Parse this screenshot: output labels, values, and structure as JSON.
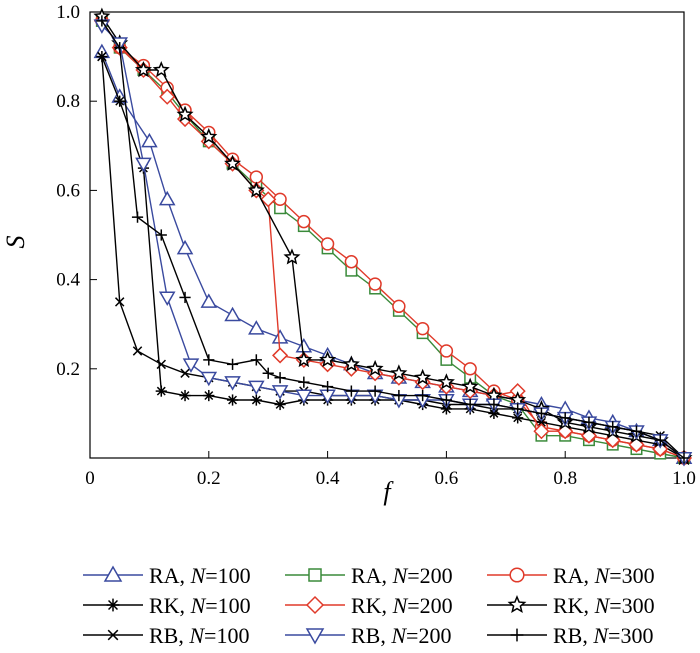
{
  "chart_data": {
    "type": "line",
    "xlabel": "f",
    "ylabel": "S",
    "xlim": [
      0,
      1.0
    ],
    "ylim": [
      0,
      1.0
    ],
    "x_ticks": [
      "0",
      "0.2",
      "0.4",
      "0.6",
      "0.8",
      "1.0"
    ],
    "y_ticks": [
      "0.2",
      "0.4",
      "0.6",
      "0.8",
      "1.0"
    ],
    "y_tick_values": [
      0.2,
      0.4,
      0.6,
      0.8,
      1.0
    ],
    "x_tick_values": [
      0,
      0.2,
      0.4,
      0.6,
      0.8,
      1.0
    ],
    "grid": false,
    "legend_position": "bottom",
    "series": [
      {
        "name": "RA, N=100",
        "method": "RA",
        "n": "100",
        "color": "#3a4a9f",
        "marker": "triangle-up",
        "x": [
          0.02,
          0.05,
          0.1,
          0.13,
          0.16,
          0.2,
          0.24,
          0.28,
          0.32,
          0.36,
          0.4,
          0.44,
          0.48,
          0.52,
          0.56,
          0.6,
          0.64,
          0.68,
          0.72,
          0.76,
          0.8,
          0.84,
          0.88,
          0.92,
          0.96,
          1.0
        ],
        "y": [
          0.91,
          0.81,
          0.71,
          0.58,
          0.47,
          0.35,
          0.32,
          0.29,
          0.27,
          0.25,
          0.23,
          0.21,
          0.19,
          0.18,
          0.17,
          0.16,
          0.15,
          0.14,
          0.13,
          0.12,
          0.11,
          0.09,
          0.08,
          0.06,
          0.04,
          0.0
        ]
      },
      {
        "name": "RA, N=200",
        "method": "RA",
        "n": "200",
        "color": "#3a8a3a",
        "marker": "square",
        "x": [
          0.02,
          0.05,
          0.09,
          0.13,
          0.16,
          0.2,
          0.24,
          0.28,
          0.32,
          0.36,
          0.4,
          0.44,
          0.48,
          0.52,
          0.56,
          0.6,
          0.64,
          0.68,
          0.72,
          0.76,
          0.8,
          0.84,
          0.88,
          0.92,
          0.96,
          1.0
        ],
        "y": [
          0.98,
          0.92,
          0.87,
          0.82,
          0.77,
          0.71,
          0.66,
          0.61,
          0.56,
          0.52,
          0.47,
          0.42,
          0.38,
          0.33,
          0.28,
          0.22,
          0.18,
          0.14,
          0.12,
          0.05,
          0.05,
          0.04,
          0.03,
          0.02,
          0.01,
          0.0
        ]
      },
      {
        "name": "RA, N=300",
        "method": "RA",
        "n": "300",
        "color": "#e03a2a",
        "marker": "circle",
        "x": [
          0.02,
          0.05,
          0.09,
          0.13,
          0.16,
          0.2,
          0.24,
          0.28,
          0.32,
          0.36,
          0.4,
          0.44,
          0.48,
          0.52,
          0.56,
          0.6,
          0.64,
          0.68,
          0.72,
          0.76,
          0.8,
          0.84,
          0.88,
          0.92,
          0.96,
          1.0
        ],
        "y": [
          0.98,
          0.92,
          0.88,
          0.83,
          0.78,
          0.73,
          0.67,
          0.63,
          0.58,
          0.53,
          0.48,
          0.44,
          0.39,
          0.34,
          0.29,
          0.24,
          0.2,
          0.15,
          0.13,
          0.07,
          0.06,
          0.05,
          0.04,
          0.03,
          0.02,
          0.0
        ]
      },
      {
        "name": "RK, N=100",
        "method": "RK",
        "n": "100",
        "color": "#000000",
        "marker": "asterisk",
        "x": [
          0.02,
          0.05,
          0.09,
          0.12,
          0.16,
          0.2,
          0.24,
          0.28,
          0.32,
          0.36,
          0.4,
          0.44,
          0.48,
          0.52,
          0.56,
          0.6,
          0.64,
          0.68,
          0.72,
          0.76,
          0.8,
          0.84,
          0.88,
          0.92,
          0.96,
          1.0
        ],
        "y": [
          0.9,
          0.8,
          0.65,
          0.15,
          0.14,
          0.14,
          0.13,
          0.13,
          0.12,
          0.13,
          0.13,
          0.13,
          0.13,
          0.13,
          0.12,
          0.11,
          0.11,
          0.1,
          0.09,
          0.08,
          0.07,
          0.06,
          0.05,
          0.04,
          0.03,
          0.0
        ]
      },
      {
        "name": "RK, N=200",
        "method": "RK",
        "n": "200",
        "color": "#e03a2a",
        "marker": "diamond",
        "x": [
          0.02,
          0.05,
          0.09,
          0.13,
          0.16,
          0.2,
          0.24,
          0.28,
          0.3,
          0.32,
          0.36,
          0.4,
          0.44,
          0.48,
          0.52,
          0.56,
          0.6,
          0.64,
          0.68,
          0.72,
          0.76,
          0.8,
          0.84,
          0.88,
          0.92,
          0.96,
          1.0
        ],
        "y": [
          0.98,
          0.92,
          0.87,
          0.81,
          0.76,
          0.71,
          0.66,
          0.6,
          0.58,
          0.23,
          0.22,
          0.21,
          0.2,
          0.19,
          0.18,
          0.17,
          0.16,
          0.15,
          0.14,
          0.15,
          0.06,
          0.06,
          0.05,
          0.04,
          0.03,
          0.02,
          0.0
        ]
      },
      {
        "name": "RK, N=300",
        "method": "RK",
        "n": "300",
        "color": "#000000",
        "marker": "star",
        "x": [
          0.02,
          0.05,
          0.09,
          0.12,
          0.16,
          0.2,
          0.24,
          0.28,
          0.34,
          0.36,
          0.4,
          0.44,
          0.48,
          0.52,
          0.56,
          0.6,
          0.64,
          0.68,
          0.72,
          0.76,
          0.8,
          0.84,
          0.88,
          0.92,
          0.96,
          1.0
        ],
        "y": [
          0.99,
          0.93,
          0.87,
          0.87,
          0.77,
          0.72,
          0.66,
          0.6,
          0.45,
          0.22,
          0.22,
          0.21,
          0.2,
          0.19,
          0.18,
          0.17,
          0.16,
          0.14,
          0.13,
          0.11,
          0.08,
          0.07,
          0.06,
          0.05,
          0.04,
          0.0
        ]
      },
      {
        "name": "RB, N=100",
        "method": "RB",
        "n": "100",
        "color": "#000000",
        "marker": "x",
        "x": [
          0.02,
          0.05,
          0.08,
          0.12,
          0.16,
          0.2,
          0.24,
          0.28,
          0.32,
          0.36,
          0.4,
          0.44,
          0.48,
          0.52,
          0.56,
          0.6,
          0.64,
          0.68,
          0.72,
          0.76,
          0.8,
          0.84,
          0.88,
          0.92,
          0.96,
          1.0
        ],
        "y": [
          0.9,
          0.35,
          0.24,
          0.21,
          0.19,
          0.18,
          0.17,
          0.16,
          0.15,
          0.15,
          0.14,
          0.14,
          0.14,
          0.13,
          0.13,
          0.12,
          0.12,
          0.11,
          0.11,
          0.1,
          0.09,
          0.08,
          0.07,
          0.06,
          0.05,
          0.0
        ]
      },
      {
        "name": "RB, N=200",
        "method": "RB",
        "n": "200",
        "color": "#3a4a9f",
        "marker": "triangle-down",
        "x": [
          0.02,
          0.05,
          0.09,
          0.13,
          0.17,
          0.2,
          0.24,
          0.28,
          0.32,
          0.36,
          0.4,
          0.44,
          0.48,
          0.52,
          0.56,
          0.6,
          0.64,
          0.68,
          0.72,
          0.76,
          0.8,
          0.84,
          0.88,
          0.92,
          0.96,
          1.0
        ],
        "y": [
          0.97,
          0.93,
          0.66,
          0.36,
          0.21,
          0.18,
          0.17,
          0.16,
          0.15,
          0.14,
          0.14,
          0.14,
          0.14,
          0.13,
          0.13,
          0.13,
          0.12,
          0.12,
          0.11,
          0.1,
          0.09,
          0.08,
          0.07,
          0.06,
          0.04,
          0.0
        ]
      },
      {
        "name": "RB, N=300",
        "method": "RB",
        "n": "300",
        "color": "#000000",
        "marker": "plus",
        "x": [
          0.02,
          0.05,
          0.08,
          0.12,
          0.16,
          0.2,
          0.24,
          0.28,
          0.3,
          0.32,
          0.36,
          0.4,
          0.44,
          0.48,
          0.52,
          0.56,
          0.6,
          0.64,
          0.68,
          0.72,
          0.76,
          0.8,
          0.84,
          0.88,
          0.92,
          0.96,
          1.0
        ],
        "y": [
          0.98,
          0.92,
          0.54,
          0.5,
          0.36,
          0.22,
          0.21,
          0.22,
          0.19,
          0.18,
          0.17,
          0.16,
          0.15,
          0.15,
          0.14,
          0.14,
          0.13,
          0.12,
          0.12,
          0.11,
          0.1,
          0.09,
          0.08,
          0.07,
          0.06,
          0.04,
          0.0
        ]
      }
    ]
  }
}
